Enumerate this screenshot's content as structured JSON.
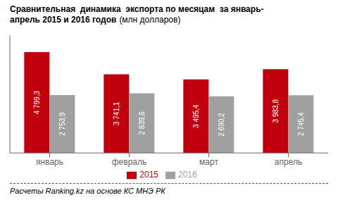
{
  "chart_data": {
    "type": "bar",
    "title": "Сравнительная  динамика  экспорта по месяцам  за январь-\nапрель 2015 и 2016 годов",
    "subtitle": "(млн долларов)",
    "annotations": [
      "Расчеты Ranking.kz на основе КС МНЭ РК"
    ],
    "categories": [
      "январь",
      "февраль",
      "март",
      "апрель"
    ],
    "series": [
      {
        "name": "2015",
        "color": "#c0000c",
        "values": [
          4799.3,
          3741.1,
          3495.4,
          3983.8
        ],
        "value_labels": [
          "4 799,3",
          "3 741,1",
          "3 495,4",
          "3 983,8"
        ]
      },
      {
        "name": "2016",
        "color": "#a0a0a0",
        "values": [
          2753.9,
          2839.6,
          2690.2,
          2745.4
        ],
        "value_labels": [
          "2 753,9",
          "2 839,6",
          "2 690,2",
          "2 745,4"
        ]
      }
    ],
    "ylim": [
      0,
      5600
    ],
    "data_labels": true,
    "tick_labels": "x",
    "legend": "bottom",
    "grid": false
  }
}
